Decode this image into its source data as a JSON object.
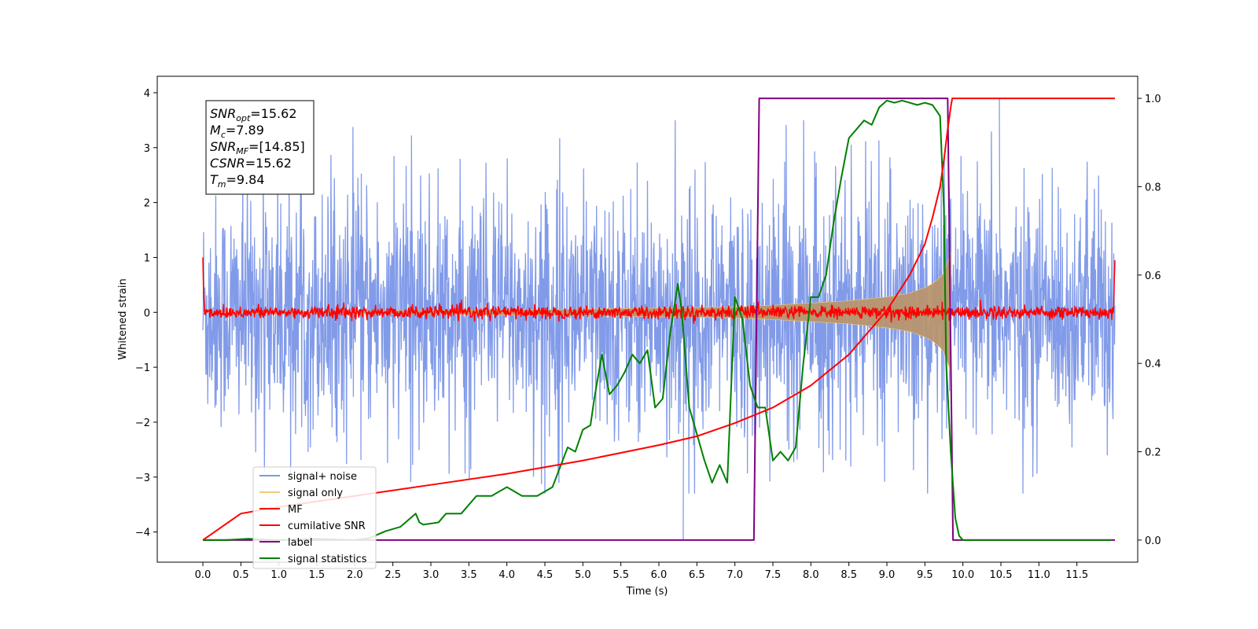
{
  "chart_data": {
    "type": "line",
    "title": "",
    "xlabel": "Time (s)",
    "ylabel": "Whitened strain",
    "y2label": "",
    "xlim": [
      -0.6,
      12.3
    ],
    "ylim": [
      -4.55,
      4.3
    ],
    "y2lim": [
      -0.05,
      1.05
    ],
    "x_ticks": [
      0.0,
      0.5,
      1.0,
      1.5,
      2.0,
      2.5,
      3.0,
      3.5,
      4.0,
      4.5,
      5.0,
      5.5,
      6.0,
      6.5,
      7.0,
      7.5,
      8.0,
      8.5,
      9.0,
      9.5,
      10.0,
      10.5,
      11.0,
      11.5
    ],
    "x_tick_labels": [
      "0.0",
      "0.5",
      "1.0",
      "1.5",
      "2.0",
      "2.5",
      "3.0",
      "3.5",
      "4.0",
      "4.5",
      "5.0",
      "5.5",
      "6.0",
      "6.5",
      "7.0",
      "7.5",
      "8.0",
      "8.5",
      "9.0",
      "9.5",
      "10.0",
      "10.5",
      "11.0",
      "11.5"
    ],
    "y_ticks": [
      -4,
      -3,
      -2,
      -1,
      0,
      1,
      2,
      3,
      4
    ],
    "y_tick_labels": [
      "−4",
      "−3",
      "−2",
      "−1",
      "0",
      "1",
      "2",
      "3",
      "4"
    ],
    "y2_ticks": [
      0.0,
      0.2,
      0.4,
      0.6,
      0.8,
      1.0
    ],
    "y2_tick_labels": [
      "0.0",
      "0.2",
      "0.4",
      "0.6",
      "0.8",
      "1.0"
    ],
    "grid": false,
    "legend_position": "lower-left",
    "legend": [
      {
        "label": "signal+ noise",
        "color": "#7b96e8"
      },
      {
        "label": "signal only",
        "color": "#f5c97a"
      },
      {
        "label": "MF",
        "color": "#ff0000"
      },
      {
        "label": "cumilative SNR",
        "color": "#ff0000"
      },
      {
        "label": "label",
        "color": "#800080"
      },
      {
        "label": "signal statistics",
        "color": "#008000"
      }
    ],
    "annotations": [
      {
        "name": "SNR",
        "sub": "opt",
        "value": "=15.62"
      },
      {
        "name": "M",
        "sub": "c",
        "value": "=7.89"
      },
      {
        "name": "SNR",
        "sub": "MF",
        "value": "=[14.85]"
      },
      {
        "name": "CSNR",
        "sub": "",
        "value": "=15.62"
      },
      {
        "name": "T",
        "sub": "m",
        "value": "=9.84"
      }
    ],
    "series": [
      {
        "name": "signal+ noise",
        "axis": "left",
        "color": "#7b96e8",
        "description": "noisy whitened strain, approx. amplitude ±3, range 0–12 s",
        "noise_amplitude": 3.0,
        "x_range": [
          0.0,
          12.0
        ]
      },
      {
        "name": "signal only",
        "axis": "left",
        "color": "#f5c97a",
        "description": "chirp envelope growing until merger",
        "envelope_x": [
          0.0,
          5.0,
          6.0,
          7.0,
          7.5,
          8.0,
          8.5,
          9.0,
          9.3,
          9.5,
          9.6,
          9.7,
          9.75,
          9.8,
          9.84
        ],
        "envelope_y": [
          0.0,
          0.06,
          0.08,
          0.1,
          0.13,
          0.17,
          0.21,
          0.28,
          0.35,
          0.45,
          0.52,
          0.64,
          0.72,
          0.92,
          1.1
        ]
      },
      {
        "name": "MF",
        "axis": "left",
        "color": "#ff0000",
        "description": "matched-filter output, noise around 0 with amplitude ~0.15; spikes to 1.0 at edges",
        "edge_values": {
          "x0": 0.0,
          "y0": 1.0,
          "x1": 12.0,
          "y1": 0.95
        }
      },
      {
        "name": "cumilative SNR",
        "axis": "right",
        "color": "#ff0000",
        "x": [
          0.0,
          0.5,
          1.0,
          2.0,
          3.0,
          4.0,
          5.0,
          6.0,
          6.5,
          7.0,
          7.5,
          8.0,
          8.5,
          9.0,
          9.3,
          9.5,
          9.6,
          9.7,
          9.75,
          9.8,
          9.84,
          9.86,
          12.0
        ],
        "y": [
          0.0,
          0.06,
          0.075,
          0.1,
          0.125,
          0.15,
          0.18,
          0.215,
          0.235,
          0.265,
          0.3,
          0.35,
          0.42,
          0.52,
          0.6,
          0.67,
          0.73,
          0.8,
          0.86,
          0.93,
          0.98,
          1.0,
          1.0
        ]
      },
      {
        "name": "label",
        "axis": "right",
        "color": "#800080",
        "x": [
          0.0,
          7.25,
          7.32,
          9.8,
          9.87,
          12.0
        ],
        "y": [
          0.0,
          0.0,
          1.0,
          1.0,
          0.0,
          0.0
        ]
      },
      {
        "name": "signal statistics",
        "axis": "right",
        "color": "#008000",
        "x": [
          0.0,
          0.3,
          0.6,
          1.0,
          1.5,
          2.0,
          2.2,
          2.4,
          2.6,
          2.8,
          2.85,
          2.9,
          3.1,
          3.2,
          3.4,
          3.6,
          3.8,
          4.0,
          4.2,
          4.4,
          4.6,
          4.8,
          4.9,
          5.0,
          5.1,
          5.15,
          5.25,
          5.35,
          5.45,
          5.55,
          5.65,
          5.75,
          5.85,
          5.95,
          6.05,
          6.15,
          6.25,
          6.3,
          6.4,
          6.5,
          6.6,
          6.7,
          6.8,
          6.9,
          7.0,
          7.1,
          7.2,
          7.3,
          7.4,
          7.5,
          7.6,
          7.7,
          7.8,
          7.9,
          8.0,
          8.1,
          8.2,
          8.3,
          8.4,
          8.5,
          8.6,
          8.7,
          8.8,
          8.9,
          9.0,
          9.1,
          9.2,
          9.3,
          9.4,
          9.5,
          9.6,
          9.7,
          9.75,
          9.78,
          9.84,
          9.9,
          9.95,
          10.0,
          10.5,
          11.0,
          11.5,
          11.95
        ],
        "y": [
          0.0,
          0.0,
          0.003,
          0.0,
          0.003,
          0.0,
          0.005,
          0.02,
          0.03,
          0.06,
          0.04,
          0.035,
          0.04,
          0.06,
          0.06,
          0.1,
          0.1,
          0.12,
          0.1,
          0.1,
          0.12,
          0.21,
          0.2,
          0.25,
          0.26,
          0.32,
          0.42,
          0.33,
          0.35,
          0.38,
          0.42,
          0.4,
          0.43,
          0.3,
          0.32,
          0.47,
          0.58,
          0.52,
          0.3,
          0.24,
          0.18,
          0.13,
          0.17,
          0.13,
          0.55,
          0.5,
          0.35,
          0.3,
          0.3,
          0.18,
          0.2,
          0.18,
          0.21,
          0.4,
          0.55,
          0.55,
          0.6,
          0.72,
          0.82,
          0.91,
          0.93,
          0.95,
          0.94,
          0.98,
          0.995,
          0.99,
          0.995,
          0.99,
          0.985,
          0.99,
          0.985,
          0.96,
          0.75,
          0.4,
          0.2,
          0.05,
          0.01,
          0.0,
          0.0,
          0.0,
          0.0,
          0.0
        ]
      }
    ]
  }
}
